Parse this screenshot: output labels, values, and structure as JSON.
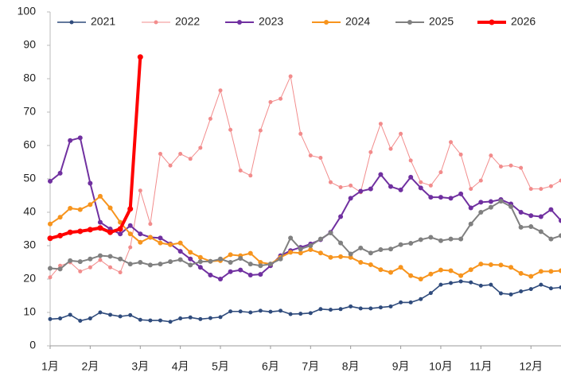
{
  "chart_data": {
    "type": "line",
    "categories": [
      "1月",
      null,
      null,
      null,
      "2月",
      null,
      null,
      null,
      null,
      "3月",
      null,
      null,
      null,
      "4月",
      null,
      null,
      null,
      "5月",
      null,
      null,
      null,
      null,
      "6月",
      null,
      null,
      null,
      "7月",
      null,
      null,
      null,
      "8月",
      null,
      null,
      null,
      null,
      "9月",
      null,
      null,
      null,
      "10月",
      null,
      null,
      null,
      "11月",
      null,
      null,
      null,
      null,
      "12月",
      null,
      null,
      null
    ],
    "series": [
      {
        "name": "2021",
        "color": "#2f4b7c",
        "values": [
          8,
          8.2,
          9.3,
          7.5,
          8.2,
          10,
          9.3,
          8.8,
          9.2,
          7.8,
          7.6,
          7.6,
          7.2,
          8.2,
          8.5,
          8,
          8.3,
          8.6,
          10.3,
          10.3,
          10,
          10.5,
          10.2,
          10.5,
          9.5,
          9.6,
          9.8,
          11,
          10.8,
          11,
          11.8,
          11.2,
          11.2,
          11.5,
          11.8,
          13,
          13,
          14,
          15.8,
          18.3,
          18.8,
          19.3,
          19,
          18,
          18.3,
          15.7,
          15.4,
          16.3,
          17,
          18.3,
          17.2,
          17.5
        ]
      },
      {
        "name": "2022",
        "color": "#f28c8c",
        "values": [
          20.5,
          24,
          25,
          22.3,
          23.5,
          25.7,
          23.5,
          22,
          29.5,
          46.5,
          36.5,
          57.5,
          54,
          57.5,
          56,
          59.3,
          68,
          76.5,
          64.7,
          52.5,
          51,
          64.5,
          73,
          74,
          80.7,
          63.5,
          57,
          56.3,
          49,
          47.5,
          48,
          46,
          58,
          66.5,
          59,
          63.5,
          55.5,
          49,
          48,
          52,
          61,
          57.3,
          47,
          49.5,
          57,
          53.7,
          54,
          53.3,
          47,
          47,
          47.8,
          49.5
        ]
      },
      {
        "name": "2023",
        "color": "#7030a0",
        "values": [
          49.3,
          51.7,
          61.5,
          62.3,
          48.7,
          37,
          35,
          33.5,
          36,
          33.5,
          32.5,
          32.3,
          30.5,
          28.3,
          26,
          23.5,
          21.2,
          20,
          22.2,
          22.7,
          21.2,
          21.4,
          24,
          27,
          28.5,
          29.5,
          30.5,
          31.8,
          34,
          38.7,
          44.2,
          46.3,
          47,
          51.3,
          47.7,
          46.7,
          50.5,
          47.3,
          44.5,
          44.5,
          44.2,
          45.5,
          41.3,
          43,
          43.2,
          43.8,
          42.5,
          40,
          39,
          38.7,
          40.8,
          37.5
        ]
      },
      {
        "name": "2024",
        "color": "#f7941d",
        "values": [
          36.5,
          38.5,
          41.2,
          40.8,
          42.3,
          44.8,
          41.3,
          37,
          33.5,
          31,
          32.5,
          30.8,
          30.3,
          30.8,
          28,
          26.5,
          25.3,
          25.5,
          27.3,
          27,
          27.7,
          25,
          24.5,
          26.5,
          28,
          27.8,
          28.8,
          27.8,
          26.5,
          26.7,
          26.5,
          25,
          24.3,
          22.8,
          22,
          23.5,
          21,
          20,
          21.5,
          22.7,
          22.5,
          21,
          22.8,
          24.5,
          24.3,
          24.2,
          23.5,
          21.7,
          20.8,
          22.3,
          22.3,
          22.5
        ]
      },
      {
        "name": "2025",
        "color": "#808080",
        "values": [
          23.2,
          23,
          25.5,
          25.2,
          26,
          27,
          26.8,
          26,
          24.5,
          25,
          24.2,
          24.5,
          25.2,
          25.8,
          24.2,
          25.2,
          25.3,
          26,
          25,
          26.2,
          24.5,
          24,
          24.5,
          26,
          32.3,
          29,
          30,
          32,
          33.8,
          30.8,
          27.5,
          29.3,
          27.8,
          28.8,
          29,
          30.3,
          30.7,
          31.8,
          32.5,
          31.5,
          32,
          32,
          36.5,
          40,
          41.5,
          43.3,
          41.7,
          35.5,
          35.7,
          34.2,
          32,
          33
        ]
      },
      {
        "name": "2026",
        "color": "#ff0000",
        "values": [
          32.2,
          33,
          34,
          34.3,
          34.8,
          35.3,
          34,
          35,
          41,
          86.5,
          null,
          null,
          null,
          null,
          null,
          null,
          null,
          null,
          null,
          null,
          null,
          null,
          null,
          null,
          null,
          null,
          null,
          null,
          null,
          null,
          null,
          null,
          null,
          null,
          null,
          null,
          null,
          null,
          null,
          null,
          null,
          null,
          null,
          null,
          null,
          null,
          null,
          null,
          null,
          null,
          null,
          null
        ]
      }
    ],
    "ylim": [
      0,
      100
    ],
    "yticks": [
      0,
      10,
      20,
      30,
      40,
      50,
      60,
      70,
      80,
      90,
      100
    ],
    "grid": false,
    "legend": "top"
  }
}
